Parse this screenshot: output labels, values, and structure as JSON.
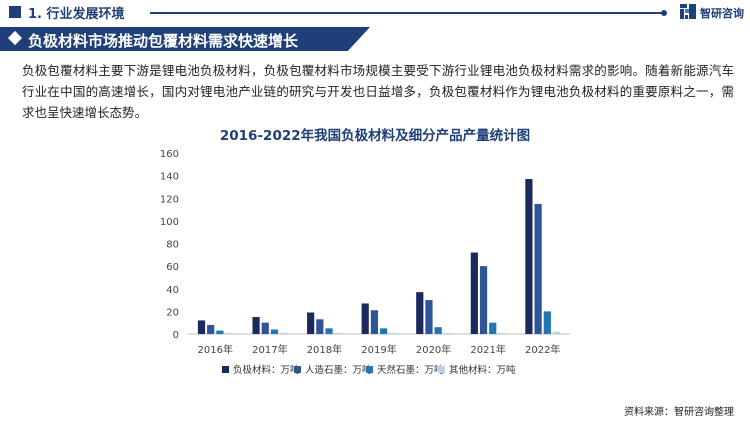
{
  "header": {
    "section_title": "1. 行业发展环境",
    "logo_text": "智研咨询"
  },
  "banner": {
    "title": "负极材料市场推动包覆材料需求快速增长"
  },
  "paragraph": "负极包覆材料主要下游是锂电池负极材料，负极包覆材料市场规模主要受下游行业锂电池负极材料需求的影响。随着新能源汽车行业在中国的高速增长，国内对锂电池产业链的研究与开发也日益增多，负极包覆材料作为锂电池负极材料的重要原料之一，需求也呈快速增长态势。",
  "chart_data": {
    "type": "bar",
    "title": "2016-2022年我国负极材料及细分产品产量统计图",
    "categories": [
      "2016年",
      "2017年",
      "2018年",
      "2019年",
      "2020年",
      "2021年",
      "2022年"
    ],
    "ylim": [
      0,
      160
    ],
    "yticks": [
      0,
      20,
      40,
      60,
      80,
      100,
      120,
      140,
      160
    ],
    "grid": false,
    "legend_position": "bottom",
    "series": [
      {
        "name": "负极材料：万吨",
        "color": "#1b2a5e",
        "values": [
          12,
          15,
          19,
          27,
          37,
          72,
          137
        ]
      },
      {
        "name": "人造石墨：万吨",
        "color": "#2f5597",
        "values": [
          8,
          10,
          13,
          21,
          30,
          60,
          115
        ]
      },
      {
        "name": "天然石墨：万吨",
        "color": "#1f77b4",
        "values": [
          3,
          4,
          5,
          5,
          6,
          10,
          20
        ]
      },
      {
        "name": "其他材料：万吨",
        "color": "#b9d3ee",
        "values": [
          1,
          1,
          1,
          1,
          1,
          1,
          2
        ]
      }
    ]
  },
  "footer": {
    "source": "资料来源：智研咨询整理"
  },
  "colors": {
    "brand": "#1f3f79"
  }
}
